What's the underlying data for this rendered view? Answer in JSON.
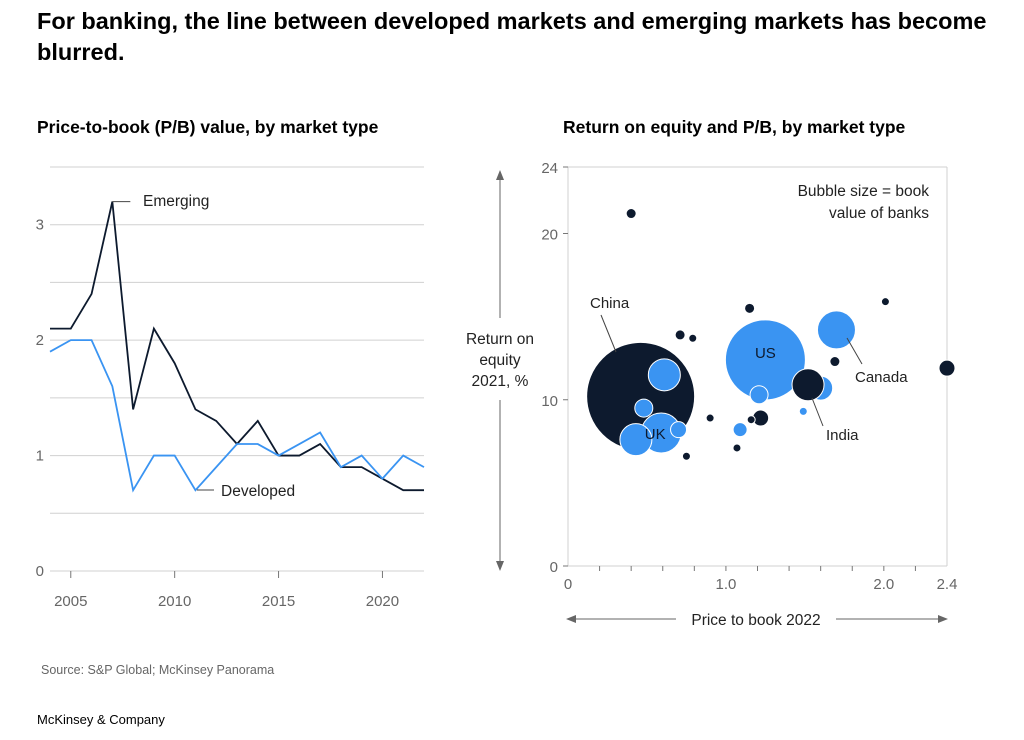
{
  "title": "For banking, the line between developed markets and emerging markets has become blurred.",
  "footer": {
    "source": "Source: S&P Global; McKinsey Panorama",
    "brand": "McKinsey & Company"
  },
  "colors": {
    "emerging": "#0d1a2e",
    "developed": "#3a94f2",
    "grid": "#d0d0d0",
    "axis": "#777777"
  },
  "chart_data": [
    {
      "type": "line",
      "title": "Price-to-book (P/B) value, by market type",
      "xlim": [
        2004,
        2022
      ],
      "ylim": [
        0,
        3.5
      ],
      "x_ticks": [
        2005,
        2010,
        2015,
        2020
      ],
      "y_ticks": [
        0,
        1,
        2,
        3
      ],
      "grid": true,
      "x": [
        2004,
        2005,
        2006,
        2007,
        2008,
        2009,
        2010,
        2011,
        2012,
        2013,
        2014,
        2015,
        2016,
        2017,
        2018,
        2019,
        2020,
        2021,
        2022
      ],
      "series": [
        {
          "name": "Emerging",
          "values": [
            2.1,
            2.1,
            2.4,
            3.2,
            1.4,
            2.1,
            1.8,
            1.4,
            1.3,
            1.1,
            1.3,
            1.0,
            1.0,
            1.1,
            0.9,
            0.9,
            0.8,
            0.7,
            0.7
          ]
        },
        {
          "name": "Developed",
          "values": [
            1.9,
            2.0,
            2.0,
            1.6,
            0.7,
            1.0,
            1.0,
            0.7,
            0.9,
            1.1,
            1.1,
            1.0,
            1.1,
            1.2,
            0.9,
            1.0,
            0.8,
            1.0,
            0.9
          ]
        }
      ]
    },
    {
      "type": "scatter",
      "title": "Return on equity and P/B, by market type",
      "xlabel": "Price to book 2022",
      "ylabel": [
        "Return on",
        "equity",
        "2021, %"
      ],
      "note": [
        "Bubble size = book",
        "value of banks"
      ],
      "xlim": [
        0,
        2.4
      ],
      "ylim": [
        0,
        24
      ],
      "x_tick_labels": [
        {
          "v": 0,
          "t": "0"
        },
        {
          "v": 1,
          "t": "1.0"
        },
        {
          "v": 2,
          "t": "2.0"
        },
        {
          "v": 2.4,
          "t": "2.4"
        }
      ],
      "y_ticks": [
        0,
        10,
        20,
        24
      ],
      "points": [
        {
          "x": 0.46,
          "y": 10.2,
          "size": 54,
          "group": "Emerging",
          "label": "China"
        },
        {
          "x": 1.25,
          "y": 12.4,
          "size": 40,
          "group": "Developed",
          "label": "US"
        },
        {
          "x": 0.59,
          "y": 8.0,
          "size": 20,
          "group": "Developed",
          "label": "UK"
        },
        {
          "x": 0.43,
          "y": 7.6,
          "size": 16,
          "group": "Developed"
        },
        {
          "x": 0.61,
          "y": 11.5,
          "size": 16,
          "group": "Developed"
        },
        {
          "x": 0.48,
          "y": 9.5,
          "size": 9,
          "group": "Developed"
        },
        {
          "x": 0.7,
          "y": 8.2,
          "size": 8,
          "group": "Developed"
        },
        {
          "x": 1.7,
          "y": 14.2,
          "size": 19,
          "group": "Developed"
        },
        {
          "x": 1.6,
          "y": 10.7,
          "size": 12,
          "group": "Developed"
        },
        {
          "x": 1.52,
          "y": 10.9,
          "size": 16,
          "group": "Emerging",
          "label": "India"
        },
        {
          "x": 2.4,
          "y": 11.9,
          "size": 8,
          "group": "Emerging",
          "label": "Canada",
          "label_for": "Developed"
        },
        {
          "x": 1.21,
          "y": 10.3,
          "size": 9,
          "group": "Developed"
        },
        {
          "x": 1.09,
          "y": 8.2,
          "size": 7,
          "group": "Developed"
        },
        {
          "x": 1.49,
          "y": 9.3,
          "size": 4,
          "group": "Developed"
        },
        {
          "x": 1.22,
          "y": 8.9,
          "size": 8,
          "group": "Emerging"
        },
        {
          "x": 0.4,
          "y": 21.2,
          "size": 5,
          "group": "Emerging"
        },
        {
          "x": 1.15,
          "y": 15.5,
          "size": 5,
          "group": "Emerging"
        },
        {
          "x": 2.01,
          "y": 15.9,
          "size": 4,
          "group": "Emerging"
        },
        {
          "x": 0.71,
          "y": 13.9,
          "size": 5,
          "group": "Emerging"
        },
        {
          "x": 0.79,
          "y": 13.7,
          "size": 4,
          "group": "Emerging"
        },
        {
          "x": 1.69,
          "y": 12.3,
          "size": 5,
          "group": "Emerging"
        },
        {
          "x": 0.9,
          "y": 8.9,
          "size": 4,
          "group": "Emerging"
        },
        {
          "x": 1.16,
          "y": 8.8,
          "size": 4,
          "group": "Emerging"
        },
        {
          "x": 1.07,
          "y": 7.1,
          "size": 4,
          "group": "Emerging"
        },
        {
          "x": 0.75,
          "y": 6.6,
          "size": 4,
          "group": "Emerging"
        }
      ]
    }
  ]
}
